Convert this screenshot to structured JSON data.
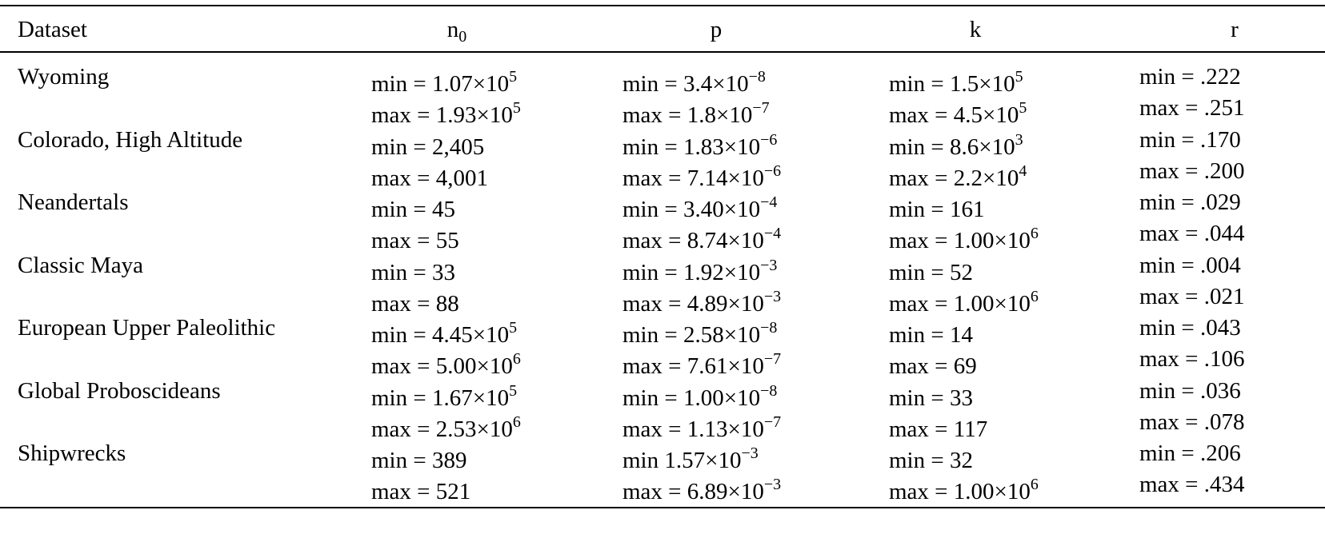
{
  "headers": {
    "dataset": "Dataset",
    "n0": "n",
    "n0_sub": "0",
    "p": "p",
    "k": "k",
    "r": "r"
  },
  "rows": [
    {
      "dataset": "Wyoming",
      "n0_min": "min = 1.07×10",
      "n0_min_exp": "5",
      "n0_max": "max = 1.93×10",
      "n0_max_exp": "5",
      "p_min": "min = 3.4×10",
      "p_min_exp": "−8",
      "p_max": "max = 1.8×10",
      "p_max_exp": "−7",
      "k_min": "min = 1.5×10",
      "k_min_exp": "5",
      "k_max": "max = 4.5×10",
      "k_max_exp": "5",
      "r_min": "min = .222",
      "r_max": "max = .251"
    },
    {
      "dataset": "Colorado, High Altitude",
      "n0_min": "min = 2,405",
      "n0_min_exp": "",
      "n0_max": "max = 4,001",
      "n0_max_exp": "",
      "p_min": "min = 1.83×10",
      "p_min_exp": "−6",
      "p_max": "max = 7.14×10",
      "p_max_exp": "−6",
      "k_min": "min = 8.6×10",
      "k_min_exp": "3",
      "k_max": "max = 2.2×10",
      "k_max_exp": "4",
      "r_min": "min = .170",
      "r_max": "max = .200"
    },
    {
      "dataset": "Neandertals",
      "n0_min": "min = 45",
      "n0_min_exp": "",
      "n0_max": "max = 55",
      "n0_max_exp": "",
      "p_min": "min = 3.40×10",
      "p_min_exp": "−4",
      "p_max": "max = 8.74×10",
      "p_max_exp": "−4",
      "k_min": "min = 161",
      "k_min_exp": "",
      "k_max": "max = 1.00×10",
      "k_max_exp": "6",
      "r_min": "min = .029",
      "r_max": "max = .044"
    },
    {
      "dataset": "Classic Maya",
      "n0_min": "min = 33",
      "n0_min_exp": "",
      "n0_max": "max = 88",
      "n0_max_exp": "",
      "p_min": "min = 1.92×10",
      "p_min_exp": "−3",
      "p_max": "max = 4.89×10",
      "p_max_exp": "−3",
      "k_min": "min = 52",
      "k_min_exp": "",
      "k_max": "max = 1.00×10",
      "k_max_exp": "6",
      "r_min": "min = .004",
      "r_max": "max = .021"
    },
    {
      "dataset": "European Upper Paleolithic",
      "n0_min": "min = 4.45×10",
      "n0_min_exp": "5",
      "n0_max": "max = 5.00×10",
      "n0_max_exp": "6",
      "p_min": "min = 2.58×10",
      "p_min_exp": "−8",
      "p_max": "max = 7.61×10",
      "p_max_exp": "−7",
      "k_min": "min = 14",
      "k_min_exp": "",
      "k_max": "max = 69",
      "k_max_exp": "",
      "r_min": "min = .043",
      "r_max": "max = .106"
    },
    {
      "dataset": "Global Proboscideans",
      "n0_min": "min = 1.67×10",
      "n0_min_exp": "5",
      "n0_max": "max = 2.53×10",
      "n0_max_exp": "6",
      "p_min": "min = 1.00×10",
      "p_min_exp": "−8",
      "p_max": "max = 1.13×10",
      "p_max_exp": "−7",
      "k_min": "min = 33",
      "k_min_exp": "",
      "k_max": "max = 117",
      "k_max_exp": "",
      "r_min": "min = .036",
      "r_max": "max = .078"
    },
    {
      "dataset": "Shipwrecks",
      "n0_min": "min = 389",
      "n0_min_exp": "",
      "n0_max": "max = 521",
      "n0_max_exp": "",
      "p_min": "min 1.57×10",
      "p_min_exp": "−3",
      "p_max": "max = 6.89×10",
      "p_max_exp": "−3",
      "k_min": "min = 32",
      "k_min_exp": "",
      "k_max": "max = 1.00×10",
      "k_max_exp": "6",
      "r_min": "min = .206",
      "r_max": "max = .434"
    }
  ]
}
